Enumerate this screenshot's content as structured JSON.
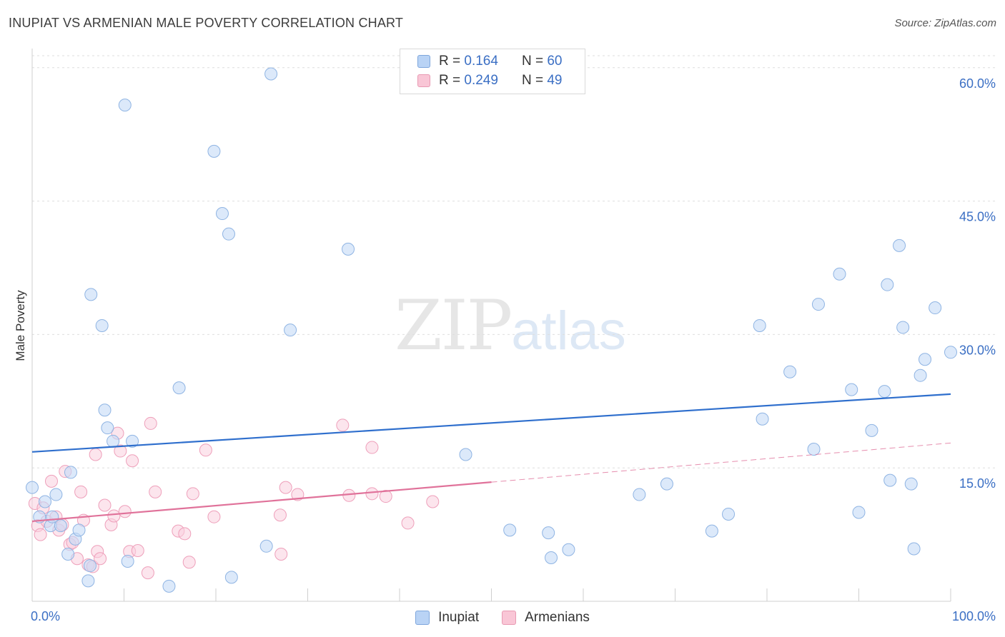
{
  "title": "INUPIAT VS ARMENIAN MALE POVERTY CORRELATION CHART",
  "source": "Source: ZipAtlas.com",
  "watermark": {
    "zip": "ZIP",
    "atlas": "atlas"
  },
  "legend": {
    "rows": [
      {
        "r_label": "R =",
        "r_value": "0.164",
        "n_label": "N =",
        "n_value": "60",
        "color": "#b9d3f5",
        "border": "#7ea6dc"
      },
      {
        "r_label": "R =",
        "r_value": "0.249",
        "n_label": "N =",
        "n_value": "49",
        "color": "#f9c6d6",
        "border": "#e89ab3"
      }
    ]
  },
  "bottom_legend": [
    {
      "name": "Inupiat",
      "color": "#b9d3f5",
      "border": "#7ea6dc"
    },
    {
      "name": "Armenians",
      "color": "#f9c6d6",
      "border": "#e89ab3"
    }
  ],
  "chart_data": {
    "type": "scatter",
    "title": "INUPIAT VS ARMENIAN MALE POVERTY CORRELATION CHART",
    "xlabel": "",
    "ylabel": "Male Poverty",
    "xlim": [
      0,
      100
    ],
    "ylim": [
      0,
      60
    ],
    "x_tick_labels": [
      "0.0%",
      "100.0%"
    ],
    "y_ticks": [
      15,
      30,
      45,
      60
    ],
    "y_tick_labels": [
      "15.0%",
      "30.0%",
      "45.0%",
      "60.0%"
    ],
    "grid": true,
    "colors": {
      "inupiat_fill": "#c5dbf6",
      "inupiat_stroke": "#8fb4e3",
      "inupiat_line": "#2f6fcd",
      "armenians_fill": "#fad0de",
      "armenians_stroke": "#ee9fba",
      "armenians_line": "#e0729a"
    },
    "series": [
      {
        "name": "Inupiat",
        "trend": {
          "x": [
            0,
            100
          ],
          "y": [
            16.8,
            23.3
          ]
        },
        "points": [
          [
            0.0,
            12.8
          ],
          [
            0.8,
            9.5
          ],
          [
            1.4,
            11.2
          ],
          [
            2.0,
            8.5
          ],
          [
            2.2,
            9.5
          ],
          [
            2.6,
            12.0
          ],
          [
            3.1,
            8.5
          ],
          [
            3.9,
            5.3
          ],
          [
            4.2,
            14.5
          ],
          [
            4.7,
            7.0
          ],
          [
            5.1,
            8.0
          ],
          [
            6.1,
            2.3
          ],
          [
            6.3,
            4.0
          ],
          [
            6.4,
            34.5
          ],
          [
            7.6,
            31.0
          ],
          [
            7.9,
            21.5
          ],
          [
            8.2,
            19.5
          ],
          [
            8.8,
            18.0
          ],
          [
            10.1,
            55.8
          ],
          [
            10.4,
            4.5
          ],
          [
            10.9,
            18.0
          ],
          [
            14.9,
            1.7
          ],
          [
            16.0,
            24.0
          ],
          [
            19.8,
            50.6
          ],
          [
            20.7,
            43.6
          ],
          [
            21.4,
            41.3
          ],
          [
            21.7,
            2.7
          ],
          [
            25.5,
            6.2
          ],
          [
            26.0,
            59.3
          ],
          [
            28.1,
            30.5
          ],
          [
            34.4,
            39.6
          ],
          [
            47.2,
            16.5
          ],
          [
            52.0,
            8.0
          ],
          [
            56.2,
            7.7
          ],
          [
            56.5,
            4.9
          ],
          [
            58.4,
            5.8
          ],
          [
            66.1,
            12.0
          ],
          [
            69.1,
            13.2
          ],
          [
            74.0,
            7.9
          ],
          [
            75.8,
            9.8
          ],
          [
            79.2,
            31.0
          ],
          [
            79.5,
            20.5
          ],
          [
            82.5,
            25.8
          ],
          [
            85.1,
            17.1
          ],
          [
            85.6,
            33.4
          ],
          [
            87.9,
            36.8
          ],
          [
            89.2,
            23.8
          ],
          [
            90.0,
            10.0
          ],
          [
            91.4,
            19.2
          ],
          [
            92.8,
            23.6
          ],
          [
            93.1,
            35.6
          ],
          [
            93.4,
            13.6
          ],
          [
            94.4,
            40.0
          ],
          [
            94.8,
            30.8
          ],
          [
            95.7,
            13.2
          ],
          [
            96.0,
            5.9
          ],
          [
            96.7,
            25.4
          ],
          [
            97.2,
            27.2
          ],
          [
            98.3,
            33.0
          ],
          [
            100.0,
            28.0
          ]
        ]
      },
      {
        "name": "Armenians",
        "trend": {
          "x": [
            0,
            50
          ],
          "y": [
            9.0,
            13.4
          ],
          "dashed_to": {
            "x": 100,
            "y": 17.8
          }
        },
        "points": [
          [
            0.3,
            11.0
          ],
          [
            0.6,
            8.5
          ],
          [
            0.9,
            7.5
          ],
          [
            1.2,
            10.5
          ],
          [
            1.6,
            9.0
          ],
          [
            2.1,
            13.5
          ],
          [
            2.6,
            9.5
          ],
          [
            2.9,
            8.0
          ],
          [
            3.3,
            8.6
          ],
          [
            3.6,
            14.6
          ],
          [
            4.1,
            6.4
          ],
          [
            4.4,
            6.6
          ],
          [
            4.9,
            4.8
          ],
          [
            5.3,
            12.3
          ],
          [
            5.6,
            9.1
          ],
          [
            6.1,
            4.1
          ],
          [
            6.6,
            3.9
          ],
          [
            6.9,
            16.5
          ],
          [
            7.1,
            5.6
          ],
          [
            7.4,
            4.8
          ],
          [
            7.9,
            10.8
          ],
          [
            8.6,
            8.6
          ],
          [
            8.9,
            9.6
          ],
          [
            9.3,
            18.9
          ],
          [
            9.6,
            16.9
          ],
          [
            10.1,
            10.1
          ],
          [
            10.6,
            5.6
          ],
          [
            10.9,
            15.8
          ],
          [
            11.5,
            5.7
          ],
          [
            12.6,
            3.2
          ],
          [
            12.9,
            20.0
          ],
          [
            13.4,
            12.3
          ],
          [
            15.9,
            7.9
          ],
          [
            16.6,
            7.6
          ],
          [
            17.1,
            4.4
          ],
          [
            17.5,
            12.1
          ],
          [
            18.9,
            17.0
          ],
          [
            19.8,
            9.5
          ],
          [
            27.0,
            9.7
          ],
          [
            27.1,
            5.3
          ],
          [
            27.6,
            12.8
          ],
          [
            28.9,
            12.0
          ],
          [
            33.8,
            19.8
          ],
          [
            34.5,
            11.9
          ],
          [
            37.0,
            17.3
          ],
          [
            37.0,
            12.1
          ],
          [
            38.5,
            11.8
          ],
          [
            40.9,
            8.8
          ],
          [
            43.6,
            11.2
          ]
        ]
      }
    ]
  }
}
